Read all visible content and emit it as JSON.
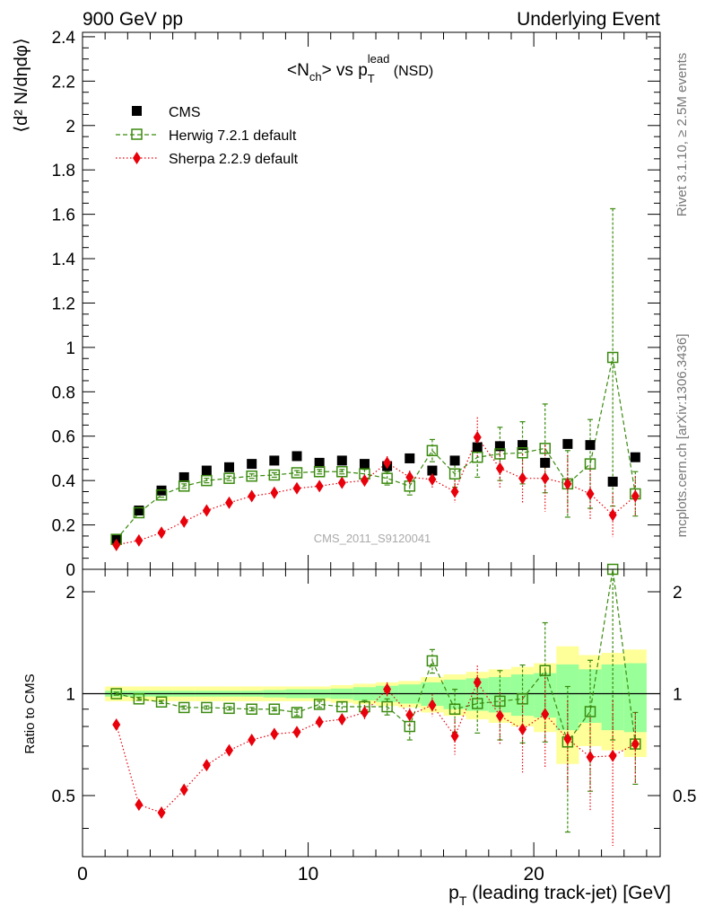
{
  "header": {
    "left": "900 GeV pp",
    "right": "Underlying Event"
  },
  "side": {
    "rivet": "Rivet 3.1.10, ≥ 2.5M events",
    "mcplots": "mcplots.cern.ch [arXiv:1306.3436]"
  },
  "chart_data": {
    "type": "scatter",
    "title_main": "<N",
    "title_sub1": "ch",
    "title_mid": "> vs p",
    "title_sup": "lead",
    "title_sub2": "T",
    "title_end": " (NSD)",
    "watermark": "CMS_2011_S9120041",
    "ylabel": "⟨d² N/dηdφ⟩",
    "ratio_ylabel": "Ratio to CMS",
    "xlabel": "p",
    "xlabel_sub": "T",
    "xlabel_rest": " (leading track-jet) [GeV]",
    "xlim": [
      0,
      25.6
    ],
    "ylim": [
      0,
      2.42
    ],
    "ratio_ylim": [
      0.33,
      2.33
    ],
    "xticks": [
      "0",
      "10",
      "20"
    ],
    "yticks": [
      "0",
      "0.2",
      "0.4",
      "0.6",
      "0.8",
      "1",
      "1.2",
      "1.4",
      "1.6",
      "1.8",
      "2",
      "2.2",
      "2.4"
    ],
    "ratio_yticks_left": [
      "0.5",
      "1",
      "2"
    ],
    "ratio_yticks_right": [
      "0.5",
      "1",
      "2"
    ],
    "x": [
      1.5,
      2.5,
      3.5,
      4.5,
      5.5,
      6.5,
      7.5,
      8.5,
      9.5,
      10.5,
      11.5,
      12.5,
      13.5,
      14.5,
      15.5,
      16.5,
      17.5,
      18.5,
      19.5,
      20.5,
      21.5,
      22.5,
      23.5,
      24.5
    ],
    "series": [
      {
        "name": "CMS",
        "color": "#000000",
        "values": [
          0.135,
          0.265,
          0.355,
          0.415,
          0.445,
          0.46,
          0.475,
          0.49,
          0.51,
          0.48,
          0.49,
          0.475,
          0.465,
          0.5,
          0.445,
          0.49,
          0.55,
          0.555,
          0.56,
          0.48,
          0.565,
          0.56,
          0.395,
          0.505
        ]
      },
      {
        "name": "Herwig 7.2.1 default",
        "color": "#3a8a0e",
        "values": [
          0.135,
          0.255,
          0.335,
          0.375,
          0.4,
          0.41,
          0.42,
          0.425,
          0.435,
          0.44,
          0.44,
          0.43,
          0.41,
          0.375,
          0.535,
          0.43,
          0.505,
          0.52,
          0.525,
          0.545,
          0.385,
          0.475,
          0.955,
          0.34
        ],
        "err": [
          0.01,
          0.01,
          0.01,
          0.01,
          0.01,
          0.01,
          0.01,
          0.01,
          0.01,
          0.01,
          0.01,
          0.02,
          0.03,
          0.04,
          0.05,
          0.06,
          0.09,
          0.12,
          0.14,
          0.2,
          0.15,
          0.2,
          0.67,
          0.1
        ]
      },
      {
        "name": "Sherpa 2.2.9 default",
        "color": "#e8000b",
        "values": [
          0.11,
          0.13,
          0.165,
          0.215,
          0.265,
          0.3,
          0.33,
          0.345,
          0.365,
          0.375,
          0.39,
          0.4,
          0.48,
          0.415,
          0.405,
          0.35,
          0.595,
          0.455,
          0.41,
          0.41,
          0.385,
          0.34,
          0.245,
          0.33
        ],
        "err": [
          0.01,
          0.01,
          0.01,
          0.01,
          0.01,
          0.01,
          0.01,
          0.01,
          0.01,
          0.01,
          0.01,
          0.02,
          0.03,
          0.03,
          0.04,
          0.05,
          0.09,
          0.09,
          0.11,
          0.15,
          0.13,
          0.12,
          0.1,
          0.09
        ]
      }
    ],
    "ratio_series": [
      {
        "name": "Herwig 7.2.1 default",
        "values": [
          1.0,
          0.965,
          0.945,
          0.91,
          0.91,
          0.905,
          0.9,
          0.9,
          0.88,
          0.93,
          0.915,
          0.915,
          0.915,
          0.8,
          1.25,
          0.9,
          0.935,
          0.95,
          0.965,
          1.17,
          0.72,
          0.885,
          2.33,
          0.71
        ],
        "err": [
          0.01,
          0.01,
          0.01,
          0.01,
          0.01,
          0.01,
          0.01,
          0.01,
          0.02,
          0.02,
          0.03,
          0.04,
          0.05,
          0.07,
          0.1,
          0.13,
          0.17,
          0.22,
          0.25,
          0.45,
          0.33,
          0.37,
          1.6,
          0.17
        ]
      },
      {
        "name": "Sherpa 2.2.9 default",
        "values": [
          0.81,
          0.47,
          0.445,
          0.52,
          0.615,
          0.68,
          0.73,
          0.76,
          0.77,
          0.825,
          0.84,
          0.88,
          1.03,
          0.865,
          0.925,
          0.75,
          1.08,
          0.86,
          0.785,
          0.87,
          0.735,
          0.65,
          0.655,
          0.71
        ],
        "err": [
          0.01,
          0.01,
          0.01,
          0.01,
          0.01,
          0.01,
          0.02,
          0.02,
          0.02,
          0.03,
          0.03,
          0.04,
          0.05,
          0.06,
          0.07,
          0.09,
          0.13,
          0.15,
          0.2,
          0.27,
          0.22,
          0.2,
          0.3,
          0.17
        ]
      }
    ],
    "band_yellow_half": [
      0.05,
      0.05,
      0.05,
      0.05,
      0.05,
      0.05,
      0.05,
      0.05,
      0.05,
      0.05,
      0.06,
      0.07,
      0.08,
      0.09,
      0.12,
      0.14,
      0.16,
      0.18,
      0.2,
      0.23,
      0.38,
      0.3,
      0.32,
      0.35
    ],
    "band_green_half": [
      0.02,
      0.02,
      0.02,
      0.02,
      0.02,
      0.02,
      0.02,
      0.025,
      0.03,
      0.03,
      0.035,
      0.045,
      0.055,
      0.065,
      0.08,
      0.1,
      0.11,
      0.12,
      0.14,
      0.15,
      0.22,
      0.18,
      0.22,
      0.23
    ]
  }
}
